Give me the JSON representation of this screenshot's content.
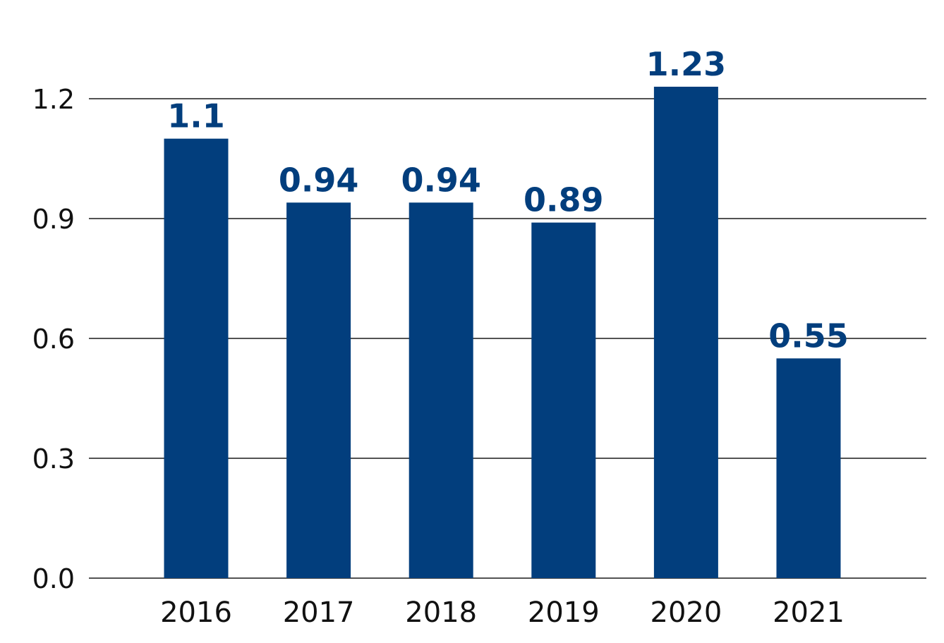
{
  "chart_data": {
    "type": "bar",
    "title": "",
    "xlabel": "",
    "ylabel": "",
    "categories": [
      "2016",
      "2017",
      "2018",
      "2019",
      "2020",
      "2021"
    ],
    "values": [
      1.1,
      0.94,
      0.94,
      0.89,
      1.23,
      0.55
    ],
    "data_labels": [
      "1.1",
      "0.94",
      "0.94",
      "0.89",
      "1.23",
      "0.55"
    ],
    "ylim": [
      0,
      1.2
    ],
    "yticks": [
      0.0,
      0.3,
      0.6,
      0.9,
      1.2
    ],
    "ytick_labels": [
      "0.0",
      "0.3",
      "0.6",
      "0.9",
      "1.2"
    ],
    "grid": true,
    "legend": "none",
    "colors": {
      "bar": "#023E7D",
      "label": "#023E7D",
      "grid": "#1A1A1A",
      "text": "#111111"
    }
  }
}
